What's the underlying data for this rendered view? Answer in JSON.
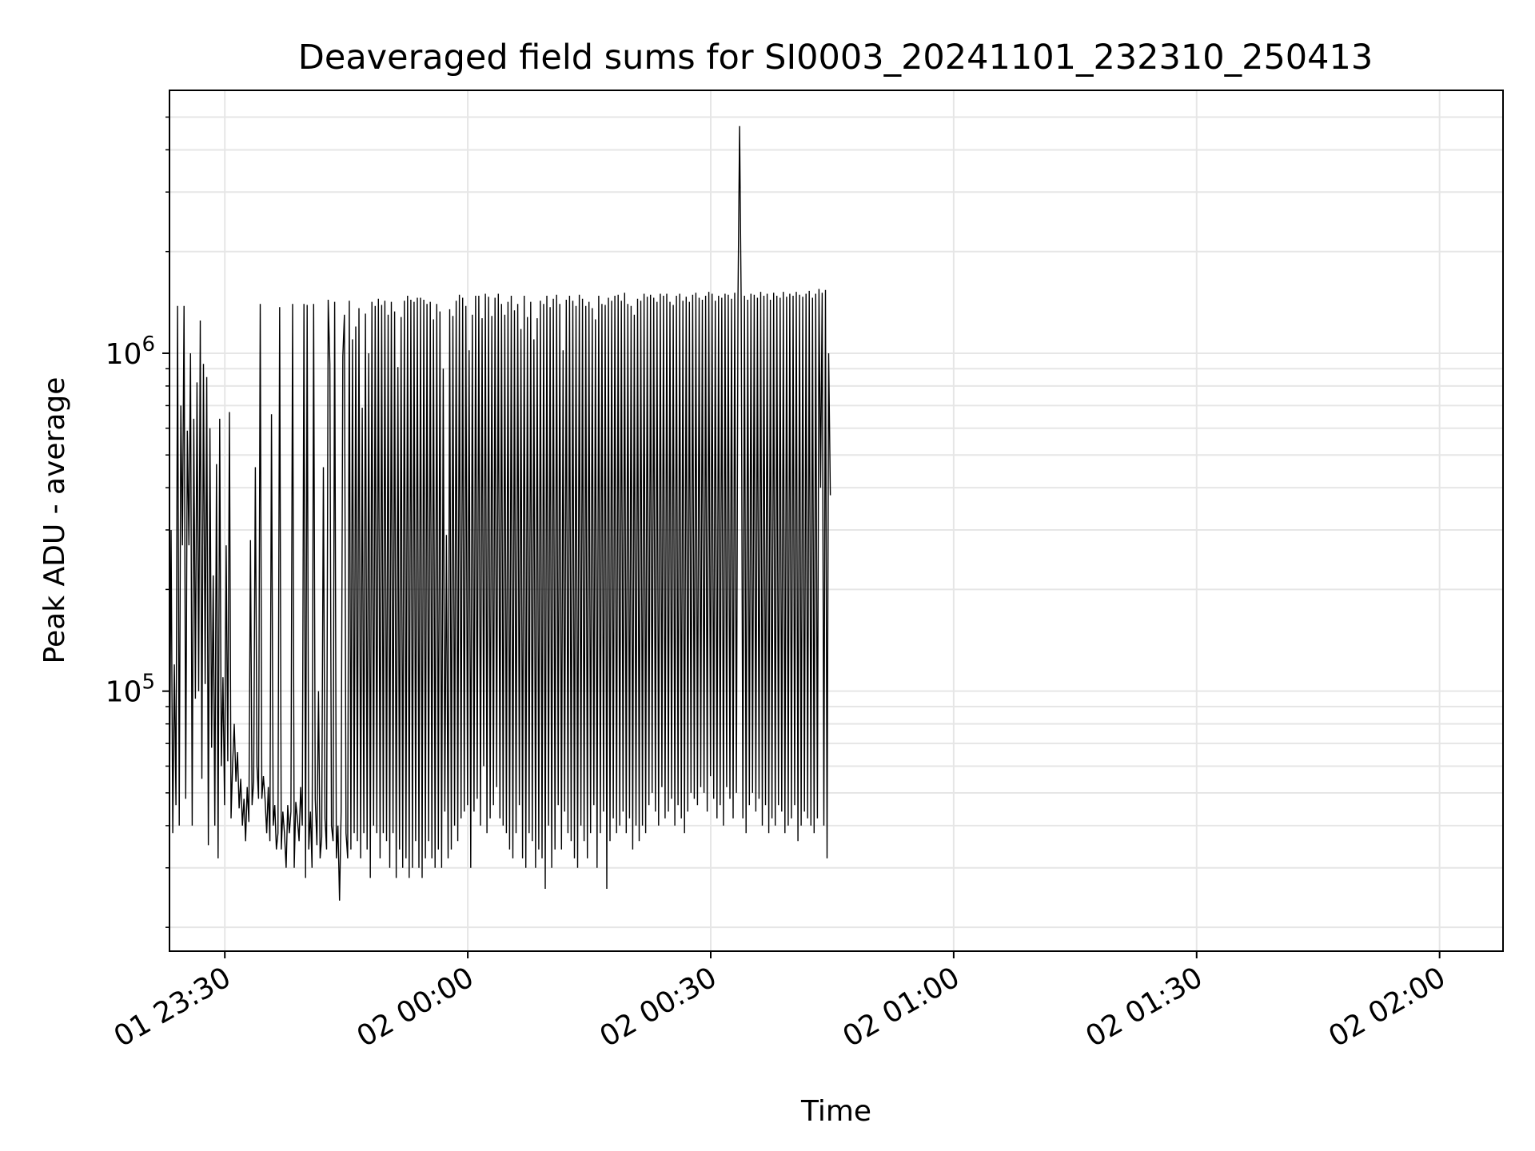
{
  "chart_data": {
    "type": "line",
    "title": "Deaveraged field sums for SI0003_20241101_232310_250413",
    "xlabel": "Time",
    "ylabel": "Peak ADU - average",
    "yscale": "log",
    "ylim": [
      17000,
      6000000
    ],
    "xlim": [
      "2024-11-01T23:23:10",
      "2024-11-02T02:07:50"
    ],
    "grid": true,
    "line_color": "#000000",
    "x_ticks": [
      {
        "t": "2024-11-01T23:30:00",
        "label": "01 23:30"
      },
      {
        "t": "2024-11-02T00:00:00",
        "label": "02 00:00"
      },
      {
        "t": "2024-11-02T00:30:00",
        "label": "02 00:30"
      },
      {
        "t": "2024-11-02T01:00:00",
        "label": "02 01:00"
      },
      {
        "t": "2024-11-02T01:30:00",
        "label": "02 01:30"
      },
      {
        "t": "2024-11-02T02:00:00",
        "label": "02 02:00"
      }
    ],
    "y_ticks": [
      {
        "v": 100000,
        "base": "10",
        "exp": "5"
      },
      {
        "v": 1000000,
        "base": "10",
        "exp": "6"
      }
    ],
    "series": [
      {
        "x_start": "2024-11-01T23:23:10",
        "x_step_seconds": 12,
        "values": [
          46000,
          300000,
          38000,
          120000,
          46000,
          1380000,
          40000,
          700000,
          270000,
          1380000,
          48000,
          590000,
          270000,
          1000000,
          40000,
          640000,
          95000,
          820000,
          100000,
          1250000,
          55000,
          930000,
          105000,
          850000,
          35000,
          600000,
          68000,
          220000,
          40000,
          470000,
          32000,
          640000,
          60000,
          110000,
          46000,
          270000,
          62000,
          670000,
          42000,
          61000,
          80000,
          54000,
          66000,
          45000,
          55000,
          40000,
          48000,
          36000,
          52000,
          41000,
          280000,
          46000,
          54000,
          460000,
          60000,
          48000,
          1400000,
          48000,
          56000,
          48000,
          38000,
          52000,
          36000,
          660000,
          40000,
          46000,
          34000,
          38000,
          1370000,
          34000,
          44000,
          38000,
          30000,
          46000,
          38000,
          44000,
          1400000,
          30000,
          47000,
          42000,
          36000,
          52000,
          40000,
          1400000,
          28000,
          1390000,
          34000,
          44000,
          30000,
          1400000,
          48000,
          35000,
          100000,
          32000,
          37000,
          460000,
          42000,
          34000,
          1440000,
          930000,
          40000,
          36000,
          1420000,
          32000,
          40000,
          24000,
          44000,
          980000,
          1300000,
          38000,
          32000,
          1430000,
          34000,
          1100000,
          38000,
          1200000,
          36000,
          1360000,
          32000,
          690000,
          38000,
          1310000,
          34000,
          1000000,
          28000,
          1420000,
          40000,
          1380000,
          38000,
          1450000,
          32000,
          1390000,
          38000,
          1430000,
          36000,
          1300000,
          30000,
          1420000,
          38000,
          1330000,
          28000,
          910000,
          34000,
          1280000,
          30000,
          1430000,
          32000,
          1480000,
          28000,
          1440000,
          30000,
          1420000,
          36000,
          1460000,
          30000,
          1460000,
          28000,
          1440000,
          32000,
          1400000,
          36000,
          1420000,
          32000,
          1260000,
          30000,
          1400000,
          34000,
          1330000,
          30000,
          900000,
          44000,
          290000,
          32000,
          1350000,
          34000,
          1290000,
          40000,
          1430000,
          36000,
          1490000,
          42000,
          1460000,
          44000,
          1380000,
          46000,
          1020000,
          30000,
          1300000,
          44000,
          1480000,
          48000,
          1480000,
          40000,
          1270000,
          60000,
          1500000,
          38000,
          1470000,
          42000,
          1290000,
          46000,
          1460000,
          52000,
          1500000,
          42000,
          1400000,
          40000,
          1300000,
          38000,
          1420000,
          34000,
          1480000,
          32000,
          1340000,
          38000,
          1400000,
          46000,
          1180000,
          32000,
          1480000,
          30000,
          1280000,
          38000,
          1420000,
          36000,
          1100000,
          30000,
          1270000,
          34000,
          1430000,
          32000,
          1400000,
          26000,
          1480000,
          40000,
          1370000,
          30000,
          1450000,
          34000,
          1490000,
          46000,
          1400000,
          34000,
          1020000,
          44000,
          1440000,
          38000,
          1480000,
          36000,
          1430000,
          32000,
          1380000,
          30000,
          1490000,
          40000,
          1450000,
          36000,
          1380000,
          32000,
          1420000,
          38000,
          1360000,
          46000,
          1260000,
          30000,
          1480000,
          38000,
          1400000,
          44000,
          1390000,
          26000,
          1460000,
          36000,
          1430000,
          42000,
          1480000,
          38000,
          1490000,
          40000,
          1430000,
          44000,
          1510000,
          38000,
          1400000,
          42000,
          1380000,
          34000,
          1300000,
          40000,
          1450000,
          36000,
          1430000,
          40000,
          1500000,
          38000,
          1470000,
          46000,
          1490000,
          50000,
          1460000,
          44000,
          1420000,
          40000,
          1500000,
          52000,
          1480000,
          42000,
          1500000,
          44000,
          1420000,
          48000,
          1390000,
          40000,
          1480000,
          46000,
          1500000,
          42000,
          1430000,
          38000,
          1470000,
          44000,
          1420000,
          50000,
          1490000,
          48000,
          1510000,
          46000,
          1460000,
          52000,
          1440000,
          50000,
          1480000,
          44000,
          1520000,
          56000,
          1500000,
          48000,
          1430000,
          42000,
          1480000,
          46000,
          1460000,
          40000,
          1500000,
          52000,
          1490000,
          48000,
          1450000,
          42000,
          1510000,
          50000,
          1470000,
          4700000,
          1400000,
          42000,
          1480000,
          38000,
          1440000,
          46000,
          1500000,
          50000,
          1490000,
          44000,
          1460000,
          48000,
          1520000,
          40000,
          1480000,
          46000,
          1500000,
          38000,
          1440000,
          42000,
          1510000,
          40000,
          1480000,
          46000,
          1460000,
          44000,
          1520000,
          38000,
          1470000,
          40000,
          1500000,
          42000,
          1480000,
          46000,
          1520000,
          36000,
          1490000,
          40000,
          1470000,
          44000,
          1500000,
          42000,
          1530000,
          40000,
          1460000,
          38000,
          1500000,
          42000,
          1550000,
          400000,
          1510000,
          40000,
          1540000,
          32000,
          1000000,
          380000
        ]
      }
    ]
  }
}
